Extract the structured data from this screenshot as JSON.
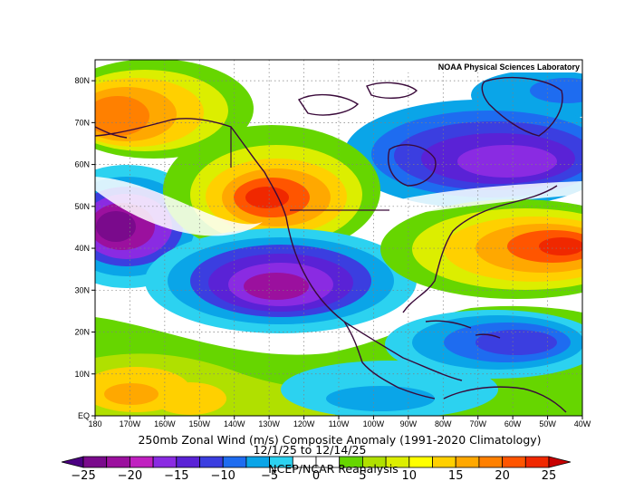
{
  "map": {
    "credit": "NOAA Physical Sciences Laboratory",
    "title": "250mb Zonal Wind (m/s) Composite Anomaly (1991-2020 Climatology)",
    "dates": "12/1/25  to 12/14/25",
    "source": "NCEP/NCAR Reanalysis",
    "lat_labels": [
      "80N",
      "70N",
      "60N",
      "50N",
      "40N",
      "30N",
      "20N",
      "10N",
      "EQ"
    ],
    "lon_labels": [
      "180",
      "170W",
      "160W",
      "150W",
      "140W",
      "130W",
      "120W",
      "110W",
      "100W",
      "90W",
      "80W",
      "70W",
      "60W",
      "50W",
      "40W"
    ]
  },
  "colorbar": {
    "tick_labels": [
      "-25",
      "-20",
      "-15",
      "-10",
      "-5",
      "0",
      "5",
      "10",
      "15",
      "20",
      "25"
    ],
    "colors": [
      "#4b0082",
      "#7a0a8c",
      "#9b109e",
      "#c020c0",
      "#8a2be2",
      "#5a22d6",
      "#3b3ee0",
      "#1e6cf0",
      "#0aa5e8",
      "#2cd2f0",
      "#ffffff",
      "#ffffff",
      "#66d600",
      "#b0e000",
      "#dcee00",
      "#ffff00",
      "#ffd000",
      "#ffa800",
      "#ff8000",
      "#ff5500",
      "#f02800",
      "#c80000"
    ]
  }
}
